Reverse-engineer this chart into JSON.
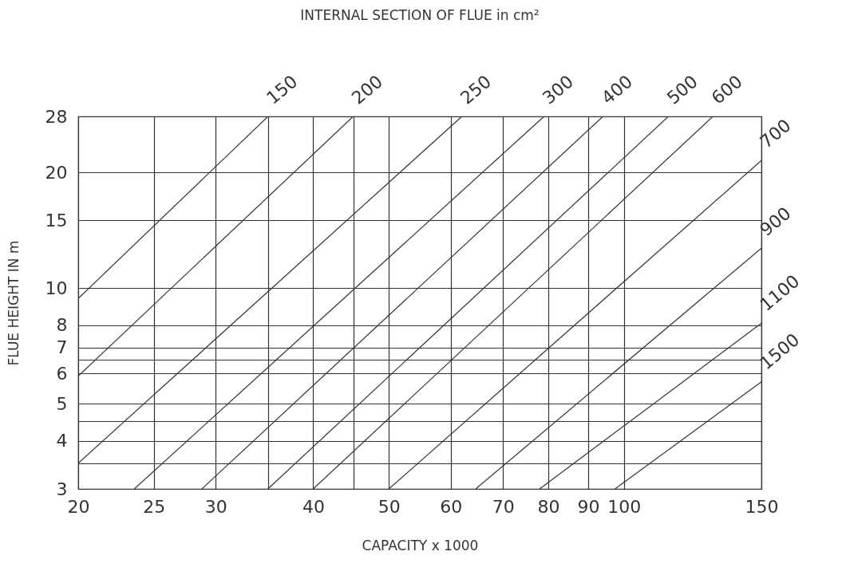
{
  "chart_data": {
    "type": "line",
    "title": "INTERNAL SECTION OF FLUE in cm²",
    "xlabel": "CAPACITY x 1000",
    "ylabel": "FLUE HEIGHT IN m",
    "log": "xy",
    "grid": true,
    "legend": false,
    "xlim": [
      20,
      150
    ],
    "xticks": [
      20,
      25,
      30,
      {
        "value": 35,
        "label": null
      },
      40,
      {
        "value": 45,
        "label": null
      },
      50,
      60,
      70,
      80,
      90,
      100,
      150
    ],
    "ylim": [
      3,
      28
    ],
    "yticks": [
      3,
      {
        "value": 3.5,
        "label": null
      },
      4,
      {
        "value": 4.5,
        "label": null
      },
      5,
      6,
      {
        "value": 6.5,
        "label": null
      },
      7,
      8,
      10,
      15,
      20,
      28
    ],
    "series": [
      {
        "name": "150",
        "color": "#333333",
        "x": [
          20,
          35
        ],
        "values": [
          9.4,
          28
        ]
      },
      {
        "name": "200",
        "color": "#333333",
        "x": [
          20,
          45
        ],
        "values": [
          5.9,
          28
        ]
      },
      {
        "name": "250",
        "color": "#333333",
        "x": [
          20,
          62
        ],
        "values": [
          3.5,
          28
        ]
      },
      {
        "name": "300",
        "color": "#333333",
        "x": [
          23.6,
          79
        ],
        "values": [
          3,
          28
        ]
      },
      {
        "name": "400",
        "color": "#333333",
        "x": [
          28.8,
          94
        ],
        "values": [
          3,
          28
        ]
      },
      {
        "name": "500",
        "color": "#333333",
        "x": [
          35,
          114
        ],
        "values": [
          3,
          28
        ]
      },
      {
        "name": "600",
        "color": "#333333",
        "x": [
          40,
          130
        ],
        "values": [
          3,
          28
        ]
      },
      {
        "name": "700",
        "color": "#333333",
        "x": [
          50,
          150
        ],
        "values": [
          3,
          21.5
        ]
      },
      {
        "name": "900",
        "color": "#333333",
        "x": [
          64.6,
          150
        ],
        "values": [
          3,
          12.7
        ]
      },
      {
        "name": "1100",
        "color": "#333333",
        "x": [
          78,
          150
        ],
        "values": [
          3,
          8.1
        ]
      },
      {
        "name": "1500",
        "color": "#333333",
        "x": [
          97.4,
          150
        ],
        "values": [
          3,
          5.7
        ]
      }
    ]
  }
}
